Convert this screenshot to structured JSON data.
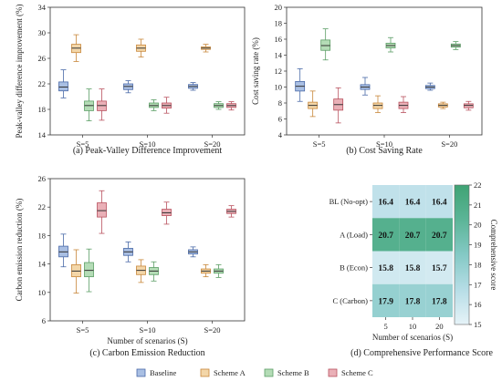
{
  "colors": {
    "Baseline": {
      "fill": "#a9bfe3",
      "stroke": "#4a6aa8"
    },
    "Scheme A": {
      "fill": "#f3d6a8",
      "stroke": "#c8873a"
    },
    "Scheme B": {
      "fill": "#b4dcb6",
      "stroke": "#5c9e66"
    },
    "Scheme C": {
      "fill": "#eab0b7",
      "stroke": "#b9525f"
    }
  },
  "legend": [
    "Baseline",
    "Scheme A",
    "Scheme B",
    "Scheme C"
  ],
  "chart_data": [
    {
      "id": "a",
      "type": "box",
      "caption": "(a) Peak-Valley Difference Improvement",
      "ylabel": "Peak-valley difference improvement (%)",
      "xlabel": "",
      "categories": [
        "S=5",
        "S=10",
        "S=20"
      ],
      "ylim": [
        14,
        34
      ],
      "yticks": [
        14,
        18,
        22,
        26,
        30,
        34
      ],
      "series": [
        {
          "name": "Baseline",
          "boxes": [
            {
              "min": 19.8,
              "q1": 20.9,
              "med": 21.5,
              "q3": 22.3,
              "max": 24.2
            },
            {
              "min": 20.6,
              "q1": 21.1,
              "med": 21.6,
              "q3": 22.0,
              "max": 22.5
            },
            {
              "min": 21.0,
              "q1": 21.3,
              "med": 21.6,
              "q3": 21.9,
              "max": 22.2
            }
          ]
        },
        {
          "name": "Scheme A",
          "boxes": [
            {
              "min": 25.5,
              "q1": 26.9,
              "med": 27.6,
              "q3": 28.2,
              "max": 29.7
            },
            {
              "min": 26.2,
              "q1": 27.1,
              "med": 27.6,
              "q3": 28.1,
              "max": 29.0
            },
            {
              "min": 27.0,
              "q1": 27.4,
              "med": 27.6,
              "q3": 27.8,
              "max": 28.2
            }
          ]
        },
        {
          "name": "Scheme B",
          "boxes": [
            {
              "min": 16.2,
              "q1": 17.8,
              "med": 18.6,
              "q3": 19.3,
              "max": 21.2
            },
            {
              "min": 17.8,
              "q1": 18.3,
              "med": 18.6,
              "q3": 19.0,
              "max": 19.5
            },
            {
              "min": 18.0,
              "q1": 18.3,
              "med": 18.6,
              "q3": 18.9,
              "max": 19.2
            }
          ]
        },
        {
          "name": "Scheme C",
          "boxes": [
            {
              "min": 16.3,
              "q1": 17.8,
              "med": 18.6,
              "q3": 19.3,
              "max": 21.2
            },
            {
              "min": 17.4,
              "q1": 18.2,
              "med": 18.6,
              "q3": 19.0,
              "max": 19.9
            },
            {
              "min": 17.9,
              "q1": 18.3,
              "med": 18.6,
              "q3": 18.9,
              "max": 19.2
            }
          ]
        }
      ]
    },
    {
      "id": "b",
      "type": "box",
      "caption": "(b) Cost Saving Rate",
      "ylabel": "Cost saving rate (%)",
      "xlabel": "",
      "categories": [
        "S=5",
        "S=10",
        "S=20"
      ],
      "ylim": [
        4,
        20
      ],
      "yticks": [
        4,
        6,
        8,
        10,
        12,
        14,
        16,
        18,
        20
      ],
      "series": [
        {
          "name": "Baseline",
          "boxes": [
            {
              "min": 8.2,
              "q1": 9.5,
              "med": 10.1,
              "q3": 10.7,
              "max": 12.3
            },
            {
              "min": 9.0,
              "q1": 9.7,
              "med": 10.0,
              "q3": 10.3,
              "max": 11.2
            },
            {
              "min": 9.6,
              "q1": 9.8,
              "med": 10.0,
              "q3": 10.2,
              "max": 10.5
            }
          ]
        },
        {
          "name": "Scheme A",
          "boxes": [
            {
              "min": 6.3,
              "q1": 7.3,
              "med": 7.7,
              "q3": 8.1,
              "max": 9.5
            },
            {
              "min": 6.8,
              "q1": 7.3,
              "med": 7.7,
              "q3": 8.0,
              "max": 8.9
            },
            {
              "min": 7.3,
              "q1": 7.5,
              "med": 7.7,
              "q3": 7.9,
              "max": 8.1
            }
          ]
        },
        {
          "name": "Scheme B",
          "boxes": [
            {
              "min": 13.4,
              "q1": 14.6,
              "med": 15.2,
              "q3": 15.9,
              "max": 17.3
            },
            {
              "min": 14.4,
              "q1": 14.9,
              "med": 15.2,
              "q3": 15.5,
              "max": 16.2
            },
            {
              "min": 14.7,
              "q1": 15.0,
              "med": 15.2,
              "q3": 15.4,
              "max": 15.7
            }
          ]
        },
        {
          "name": "Scheme C",
          "boxes": [
            {
              "min": 5.5,
              "q1": 7.1,
              "med": 7.8,
              "q3": 8.5,
              "max": 9.9
            },
            {
              "min": 6.8,
              "q1": 7.3,
              "med": 7.7,
              "q3": 8.1,
              "max": 8.8
            },
            {
              "min": 7.1,
              "q1": 7.4,
              "med": 7.7,
              "q3": 7.9,
              "max": 8.2
            }
          ]
        }
      ]
    },
    {
      "id": "c",
      "type": "box",
      "caption": "(c) Carbon Emission Reduction",
      "ylabel": "Carbon emission reduction (%)",
      "xlabel": "Number of scenarios (S)",
      "categories": [
        "S=5",
        "S=10",
        "S=20"
      ],
      "ylim": [
        6,
        26
      ],
      "yticks": [
        6,
        10,
        14,
        18,
        22,
        26
      ],
      "series": [
        {
          "name": "Baseline",
          "boxes": [
            {
              "min": 13.6,
              "q1": 15.0,
              "med": 15.7,
              "q3": 16.5,
              "max": 18.2
            },
            {
              "min": 14.3,
              "q1": 15.2,
              "med": 15.7,
              "q3": 16.2,
              "max": 17.1
            },
            {
              "min": 15.0,
              "q1": 15.4,
              "med": 15.7,
              "q3": 16.0,
              "max": 16.4
            }
          ]
        },
        {
          "name": "Scheme A",
          "boxes": [
            {
              "min": 9.9,
              "q1": 12.2,
              "med": 13.0,
              "q3": 13.9,
              "max": 16.0
            },
            {
              "min": 11.4,
              "q1": 12.5,
              "med": 13.1,
              "q3": 13.7,
              "max": 14.6
            },
            {
              "min": 12.2,
              "q1": 12.7,
              "med": 13.0,
              "q3": 13.3,
              "max": 13.9
            }
          ]
        },
        {
          "name": "Scheme B",
          "boxes": [
            {
              "min": 10.1,
              "q1": 12.2,
              "med": 13.1,
              "q3": 14.2,
              "max": 16.1
            },
            {
              "min": 11.6,
              "q1": 12.5,
              "med": 13.0,
              "q3": 13.5,
              "max": 14.3
            },
            {
              "min": 12.1,
              "q1": 12.7,
              "med": 13.0,
              "q3": 13.3,
              "max": 13.9
            }
          ]
        },
        {
          "name": "Scheme C",
          "boxes": [
            {
              "min": 18.3,
              "q1": 20.6,
              "med": 21.5,
              "q3": 22.6,
              "max": 24.3
            },
            {
              "min": 19.6,
              "q1": 20.8,
              "med": 21.2,
              "q3": 21.7,
              "max": 22.7
            },
            {
              "min": 20.6,
              "q1": 21.1,
              "med": 21.4,
              "q3": 21.7,
              "max": 22.2
            }
          ]
        }
      ]
    },
    {
      "id": "d",
      "type": "heatmap",
      "caption": "(d) Comprehensive Performance Score",
      "xlabel": "Number of scenarios (S)",
      "ylabel": "",
      "rows": [
        "BL (No-opt)",
        "A (Load)",
        "B (Econ)",
        "C (Carbon)"
      ],
      "cols": [
        "5",
        "10",
        "20"
      ],
      "values": [
        [
          16.4,
          16.4,
          16.4
        ],
        [
          20.7,
          20.7,
          20.7
        ],
        [
          15.8,
          15.8,
          15.7
        ],
        [
          17.9,
          17.8,
          17.8
        ]
      ],
      "colorbar": {
        "label": "Comprehensive score",
        "min": 15,
        "max": 22,
        "ticks": [
          15,
          16,
          17,
          18,
          19,
          20,
          21,
          22
        ]
      },
      "colormap": [
        "#e6f3f8",
        "#b6dde6",
        "#84c9c5",
        "#5cb597",
        "#3fa374"
      ]
    }
  ]
}
